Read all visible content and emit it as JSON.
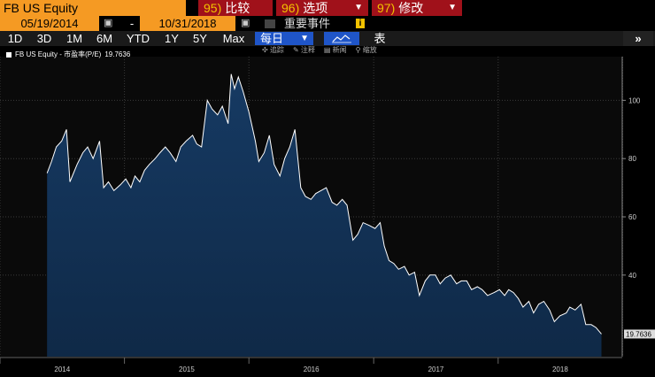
{
  "header": {
    "ticker": "FB US Equity",
    "compare": {
      "num": "95)",
      "label": "比较"
    },
    "options": {
      "num": "96)",
      "label": "选项"
    },
    "edit": {
      "num": "97)",
      "label": "修改"
    }
  },
  "dates": {
    "start": "05/19/2014",
    "separator": "-",
    "end": "10/31/2018"
  },
  "events_label": "重要事件",
  "ranges": [
    "1D",
    "3D",
    "1M",
    "6M",
    "YTD",
    "1Y",
    "5Y",
    "Max"
  ],
  "frequency": "每日",
  "table_label": "表",
  "more_label": "»",
  "tools": [
    "追踪",
    "注释",
    "新闻",
    "缩放"
  ],
  "legend": {
    "label": "FB US Equity - 市盈率(P/E)",
    "value": "19.7636"
  },
  "colors": {
    "orange": "#f59a23",
    "red": "#a0111a",
    "blue": "#1f55c8",
    "fill": "#0f2947",
    "line": "#ffffff"
  },
  "chart_data": {
    "type": "area",
    "series": [
      {
        "name": "FB US Equity - 市盈率(P/E)",
        "x": [
          "2014-05-19",
          "2014-06-01",
          "2014-06-15",
          "2014-07-01",
          "2014-07-15",
          "2014-07-25",
          "2014-08-15",
          "2014-09-01",
          "2014-09-15",
          "2014-10-01",
          "2014-10-20",
          "2014-11-01",
          "2014-11-15",
          "2014-12-01",
          "2014-12-20",
          "2015-01-05",
          "2015-01-20",
          "2015-02-01",
          "2015-02-15",
          "2015-03-01",
          "2015-03-15",
          "2015-04-01",
          "2015-04-15",
          "2015-05-01",
          "2015-05-15",
          "2015-06-01",
          "2015-06-15",
          "2015-07-01",
          "2015-07-20",
          "2015-08-01",
          "2015-08-15",
          "2015-09-01",
          "2015-09-15",
          "2015-10-01",
          "2015-10-15",
          "2015-11-01",
          "2015-11-10",
          "2015-11-20",
          "2015-12-01",
          "2015-12-15",
          "2016-01-01",
          "2016-01-20",
          "2016-01-30",
          "2016-02-15",
          "2016-03-01",
          "2016-03-15",
          "2016-04-01",
          "2016-04-15",
          "2016-04-30",
          "2016-05-15",
          "2016-06-01",
          "2016-06-15",
          "2016-07-01",
          "2016-07-15",
          "2016-07-30",
          "2016-08-15",
          "2016-09-01",
          "2016-09-15",
          "2016-10-01",
          "2016-10-15",
          "2016-11-01",
          "2016-11-15",
          "2016-12-01",
          "2016-12-20",
          "2017-01-05",
          "2017-01-20",
          "2017-02-01",
          "2017-02-15",
          "2017-03-01",
          "2017-03-15",
          "2017-04-01",
          "2017-04-15",
          "2017-05-01",
          "2017-05-15",
          "2017-06-01",
          "2017-06-15",
          "2017-07-01",
          "2017-07-15",
          "2017-07-30",
          "2017-08-15",
          "2017-09-01",
          "2017-09-15",
          "2017-10-01",
          "2017-10-15",
          "2017-11-01",
          "2017-11-15",
          "2017-12-01",
          "2017-12-20",
          "2018-01-05",
          "2018-01-20",
          "2018-02-01",
          "2018-02-15",
          "2018-03-01",
          "2018-03-15",
          "2018-04-01",
          "2018-04-15",
          "2018-04-30",
          "2018-05-15",
          "2018-06-01",
          "2018-06-15",
          "2018-07-01",
          "2018-07-20",
          "2018-07-30",
          "2018-08-15",
          "2018-09-01",
          "2018-09-15",
          "2018-10-01",
          "2018-10-15",
          "2018-10-31"
        ],
        "y": [
          75,
          79,
          84,
          86,
          90,
          72,
          78,
          82,
          84,
          80,
          86,
          70,
          72,
          69,
          71,
          73,
          70,
          74,
          72,
          76,
          78,
          80,
          82,
          84,
          82,
          79,
          84,
          86,
          88,
          85,
          84,
          100,
          97,
          95,
          98,
          92,
          109,
          104,
          108,
          103,
          96,
          86,
          79,
          82,
          88,
          78,
          74,
          80,
          84,
          90,
          70,
          67,
          66,
          68,
          69,
          70,
          65,
          64,
          66,
          64,
          52,
          54,
          58,
          57,
          56,
          58,
          50,
          45,
          44,
          42,
          43,
          40,
          41,
          33,
          38,
          40,
          40,
          37,
          39,
          40,
          37,
          38,
          38,
          35,
          36,
          35,
          33,
          34,
          35,
          33,
          35,
          34,
          32,
          29,
          31,
          27,
          30,
          31,
          28,
          24,
          26,
          27,
          29,
          28,
          30,
          23,
          23,
          22,
          19.7636
        ]
      }
    ],
    "x_ticks": [
      "2014",
      "2015",
      "2016",
      "2017",
      "2018"
    ],
    "y_ticks": [
      40,
      60,
      80,
      100
    ],
    "ylim": [
      12,
      115
    ],
    "last_value_label": "19.7636",
    "grid": true
  }
}
